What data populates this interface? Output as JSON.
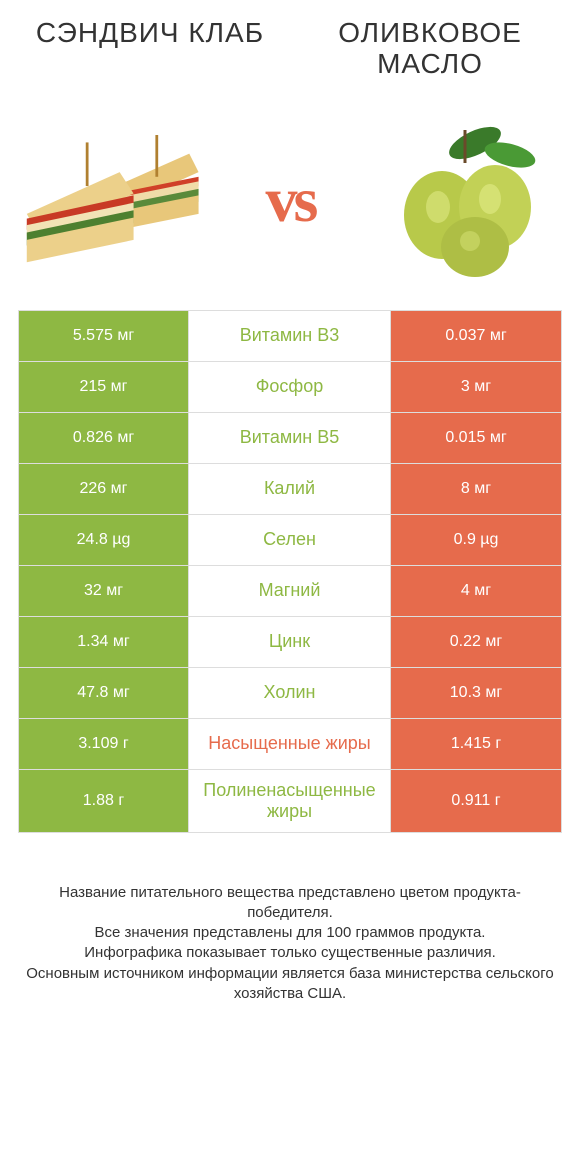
{
  "colors": {
    "left_accent": "#8eb843",
    "right_accent": "#e66b4c",
    "border": "#dddddd",
    "text": "#333333",
    "white": "#ffffff",
    "bg": "#ffffff"
  },
  "header": {
    "left_title": "СЭНДВИЧ КЛАБ",
    "right_title": "ОЛИВКОВОЕ МАСЛО",
    "vs": "vs"
  },
  "table": {
    "type": "comparison-table",
    "left_bg": "#8eb843",
    "right_bg": "#e66b4c",
    "mid_color_left_wins": "#8eb843",
    "mid_color_right_wins": "#e66b4c",
    "rows": [
      {
        "left": "5.575 мг",
        "label": "Витамин B3",
        "right": "0.037 мг",
        "winner": "left"
      },
      {
        "left": "215 мг",
        "label": "Фосфор",
        "right": "3 мг",
        "winner": "left"
      },
      {
        "left": "0.826 мг",
        "label": "Витамин B5",
        "right": "0.015 мг",
        "winner": "left"
      },
      {
        "left": "226 мг",
        "label": "Калий",
        "right": "8 мг",
        "winner": "left"
      },
      {
        "left": "24.8 µg",
        "label": "Селен",
        "right": "0.9 µg",
        "winner": "left"
      },
      {
        "left": "32 мг",
        "label": "Магний",
        "right": "4 мг",
        "winner": "left"
      },
      {
        "left": "1.34 мг",
        "label": "Цинк",
        "right": "0.22 мг",
        "winner": "left"
      },
      {
        "left": "47.8 мг",
        "label": "Холин",
        "right": "10.3 мг",
        "winner": "left"
      },
      {
        "left": "3.109 г",
        "label": "Насыщенные жиры",
        "right": "1.415 г",
        "winner": "right"
      },
      {
        "left": "1.88 г",
        "label": "Полиненасыщенные жиры",
        "right": "0.911 г",
        "winner": "left"
      }
    ]
  },
  "footer": {
    "line1": "Название питательного вещества представлено цветом продукта-победителя.",
    "line2": "Все значения представлены для 100 граммов продукта.",
    "line3": "Инфографика показывает только существенные различия.",
    "line4": "Основным источником информации является база министерства сельского хозяйства США."
  }
}
